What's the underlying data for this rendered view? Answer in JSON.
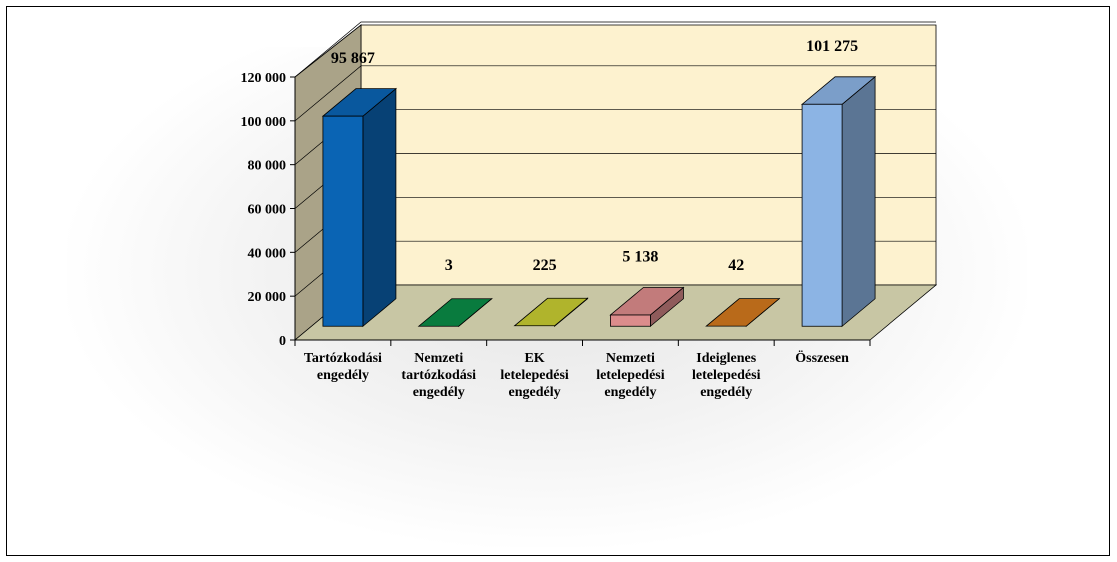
{
  "chart_data": {
    "type": "bar",
    "title": "",
    "xlabel": "",
    "ylabel": "",
    "ylim": [
      0,
      120000
    ],
    "yticks": [
      0,
      20000,
      40000,
      60000,
      80000,
      100000,
      120000
    ],
    "ytick_labels": [
      "0",
      "20 000",
      "40 000",
      "60 000",
      "80 000",
      "100 000",
      "120 000"
    ],
    "grid": true,
    "categories": [
      [
        "Tartózkodási",
        "engedély"
      ],
      [
        "Nemzeti",
        "tartózkodási",
        "engedély"
      ],
      [
        "EK",
        "letelepedési",
        "engedély"
      ],
      [
        "Nemzeti",
        "letelepedési",
        "engedély"
      ],
      [
        "Ideiglenes",
        "letelepedési",
        "engedély"
      ],
      [
        "Összesen"
      ]
    ],
    "values": [
      95867,
      3,
      225,
      5138,
      42,
      101275
    ],
    "value_labels": [
      "95 867",
      "3",
      "225",
      "5 138",
      "42",
      "101 275"
    ],
    "colors": [
      "#0a64b4",
      "#0a8c46",
      "#c8cc32",
      "#dc8c8c",
      "#d2781e",
      "#8cb4e4"
    ]
  }
}
